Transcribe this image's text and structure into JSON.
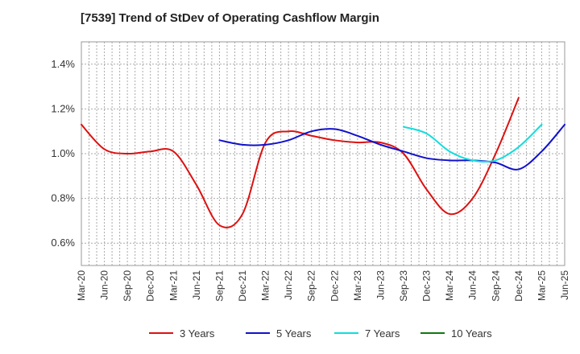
{
  "chart_data": {
    "type": "line",
    "title": "[7539]  Trend of StDev of Operating Cashflow Margin",
    "xlabel": "",
    "ylabel": "",
    "y_unit": "%",
    "ylim": [
      0.5,
      1.5
    ],
    "yticks": [
      0.6,
      0.8,
      1.0,
      1.2,
      1.4
    ],
    "ytick_labels": [
      "0.6%",
      "0.8%",
      "1.0%",
      "1.2%",
      "1.4%"
    ],
    "x_categories": [
      "Mar-20",
      "Jun-20",
      "Sep-20",
      "Dec-20",
      "Mar-21",
      "Jun-21",
      "Sep-21",
      "Dec-21",
      "Mar-22",
      "Jun-22",
      "Sep-22",
      "Dec-22",
      "Mar-23",
      "Jun-23",
      "Sep-23",
      "Dec-23",
      "Mar-24",
      "Jun-24",
      "Sep-24",
      "Dec-24",
      "Mar-25",
      "Jun-25"
    ],
    "grid": true,
    "legend_position": "bottom",
    "series": [
      {
        "name": "3 Years",
        "color": "#dd1111",
        "start_index": 0,
        "values": [
          1.13,
          1.02,
          1.0,
          1.01,
          1.01,
          0.86,
          0.68,
          0.73,
          1.05,
          1.1,
          1.08,
          1.06,
          1.05,
          1.05,
          1.0,
          0.84,
          0.73,
          0.8,
          1.0,
          1.25
        ]
      },
      {
        "name": "5 Years",
        "color": "#1111cc",
        "start_index": 6,
        "values": [
          1.06,
          1.04,
          1.04,
          1.06,
          1.1,
          1.11,
          1.08,
          1.04,
          1.01,
          0.98,
          0.97,
          0.97,
          0.96,
          0.93,
          1.01,
          1.13
        ]
      },
      {
        "name": "7 Years",
        "color": "#11dddd",
        "start_index": 14,
        "values": [
          1.12,
          1.09,
          1.01,
          0.97,
          0.97,
          1.03,
          1.13
        ]
      },
      {
        "name": "10 Years",
        "color": "#117711",
        "start_index": 0,
        "values": []
      }
    ]
  }
}
